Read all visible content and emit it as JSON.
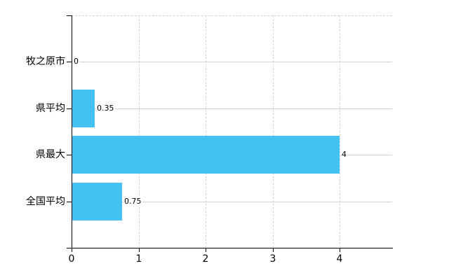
{
  "chart_data": {
    "type": "bar",
    "orientation": "horizontal",
    "title": "",
    "xlabel": "",
    "ylabel": "",
    "categories": [
      "牧之原市",
      "県平均",
      "県最大",
      "全国平均"
    ],
    "values": [
      0,
      0.35,
      4,
      0.75
    ],
    "value_labels": [
      "0",
      "0.35",
      "4",
      "0.75"
    ],
    "x_ticks": [
      "0",
      "1",
      "2",
      "3",
      "4"
    ],
    "x_tick_values": [
      0,
      1,
      2,
      3,
      4
    ],
    "xlim": [
      0,
      4.79
    ],
    "legend": "none",
    "grid": {
      "horizontal": "solid",
      "vertical": "dashed",
      "top_border": "dashed"
    },
    "colors": {
      "bar": "#43c1f1",
      "grid_horizontal": "#d1d6cc",
      "grid_vertical": "#d5d2d5",
      "axis": "#000000",
      "text": "#000000",
      "background": "#ffffff"
    }
  }
}
